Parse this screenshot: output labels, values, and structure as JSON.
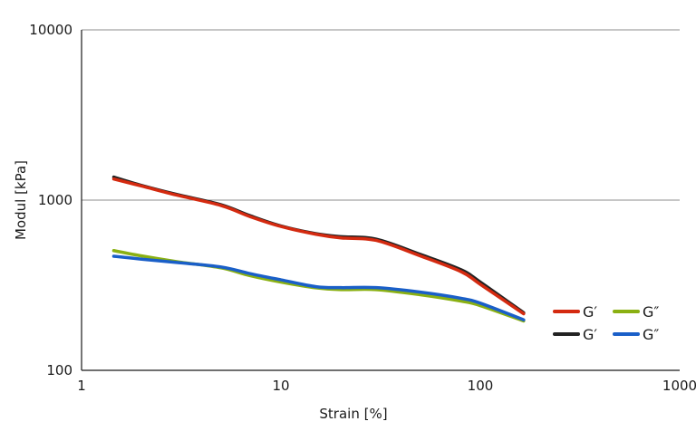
{
  "chart_data": {
    "type": "line",
    "xscale": "log",
    "yscale": "log",
    "xlabel": "Strain [%]",
    "ylabel": "Modul [kPa]",
    "xlim": [
      1,
      1000
    ],
    "ylim": [
      100,
      10000
    ],
    "xticks": [
      {
        "value": 1,
        "label": "1"
      },
      {
        "value": 10,
        "label": "10"
      },
      {
        "value": 100,
        "label": "100"
      },
      {
        "value": 1000,
        "label": "1000"
      }
    ],
    "yticks": [
      {
        "value": 100,
        "label": "100"
      },
      {
        "value": 1000,
        "label": "1000"
      },
      {
        "value": 10000,
        "label": "10000"
      }
    ],
    "grid": "horizontal",
    "legend_position": "bottom-right",
    "series": [
      {
        "name": "G′",
        "color": "#d42a10",
        "x": [
          1.45,
          2.0,
          3.0,
          5.0,
          7.0,
          10.0,
          15.0,
          20.0,
          30.0,
          50.0,
          80.0,
          100.0,
          165.0
        ],
        "y": [
          1330,
          1210,
          1070,
          930,
          800,
          700,
          630,
          600,
          580,
          470,
          380,
          320,
          215
        ]
      },
      {
        "name": "G′",
        "color": "#222222",
        "x": [
          1.45,
          2.0,
          3.0,
          5.0,
          7.0,
          10.0,
          15.0,
          20.0,
          30.0,
          50.0,
          80.0,
          100.0,
          165.0
        ],
        "y": [
          1365,
          1220,
          1080,
          940,
          810,
          705,
          635,
          610,
          590,
          480,
          390,
          330,
          218
        ]
      },
      {
        "name": "G″",
        "color": "#8ab012",
        "x": [
          1.45,
          2.0,
          3.0,
          5.0,
          7.0,
          10.0,
          15.0,
          20.0,
          30.0,
          50.0,
          80.0,
          100.0,
          165.0
        ],
        "y": [
          505,
          470,
          435,
          400,
          360,
          330,
          305,
          298,
          298,
          278,
          255,
          240,
          195
        ]
      },
      {
        "name": "G″",
        "color": "#1a5fc8",
        "x": [
          1.45,
          2.0,
          3.0,
          5.0,
          7.0,
          10.0,
          15.0,
          20.0,
          30.0,
          50.0,
          80.0,
          100.0,
          165.0
        ],
        "y": [
          468,
          450,
          430,
          405,
          370,
          340,
          310,
          306,
          306,
          288,
          265,
          248,
          198
        ]
      }
    ]
  }
}
